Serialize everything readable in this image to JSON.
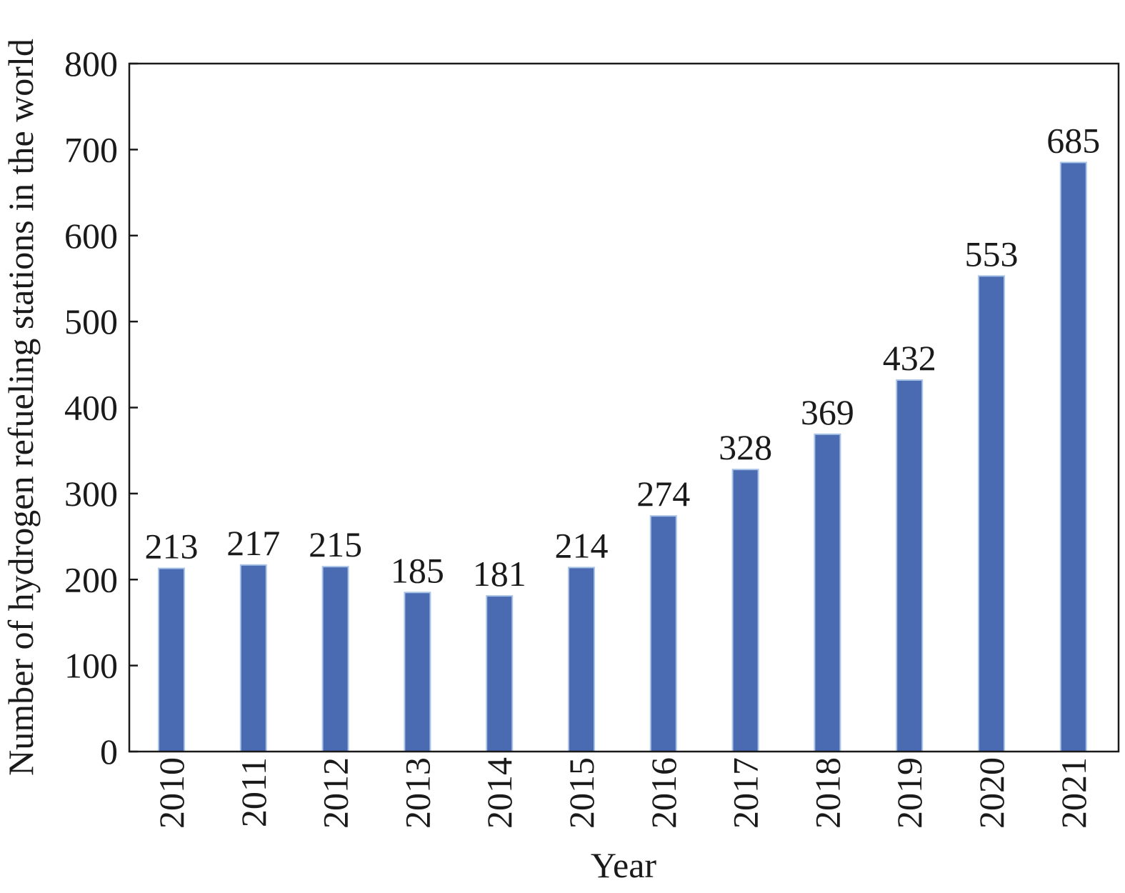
{
  "chart_data": {
    "type": "bar",
    "categories": [
      "2010",
      "2011",
      "2012",
      "2013",
      "2014",
      "2015",
      "2016",
      "2017",
      "2018",
      "2019",
      "2020",
      "2021"
    ],
    "values": [
      213,
      217,
      215,
      185,
      181,
      214,
      274,
      328,
      369,
      432,
      553,
      685
    ],
    "data_labels": [
      "213",
      "217",
      "215",
      "185",
      "181",
      "214",
      "274",
      "328",
      "369",
      "432",
      "553",
      "685"
    ],
    "xlabel": "Year",
    "ylabel": "Number of hydrogen refueling stations in the world",
    "ylim": [
      0,
      800
    ],
    "yticks": [
      0,
      100,
      200,
      300,
      400,
      500,
      600,
      700,
      800
    ],
    "ytick_labels": [
      "0",
      "100",
      "200",
      "300",
      "400",
      "500",
      "600",
      "700",
      "800"
    ],
    "x_tick_orientation": "vertical",
    "grid": false,
    "legend": false,
    "bar_color": "#4a6ab2"
  }
}
